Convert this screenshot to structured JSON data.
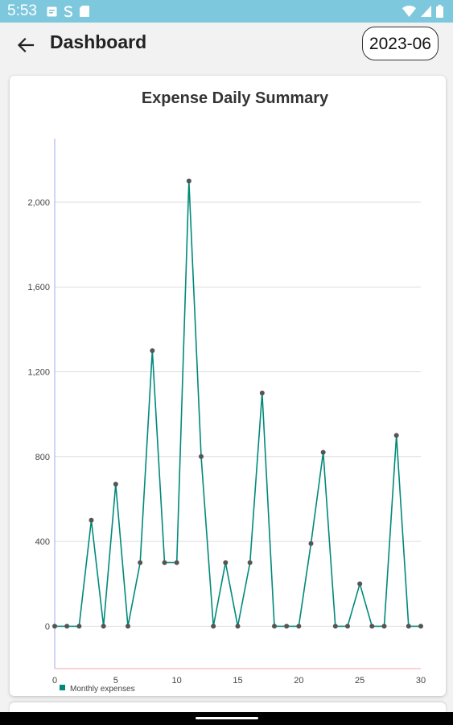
{
  "status_bar": {
    "time": "5:53",
    "left_icons": [
      "message-icon",
      "s-app-icon",
      "sd-card-icon"
    ],
    "right_icons": [
      "wifi-icon",
      "signal-icon",
      "battery-icon"
    ]
  },
  "app_bar": {
    "back_icon": "arrow-left-icon",
    "title": "Dashboard",
    "month_selector": "2023-06"
  },
  "colors": {
    "status_bar": "#7ec8de",
    "series_line": "#00897b",
    "point": "#555555",
    "grid": "#dddddd",
    "y_axis": "#a4a8ee",
    "x_axis": "#f0a8a8"
  },
  "chart_data": {
    "type": "line",
    "title": "Expense Daily Summary",
    "xlabel": "",
    "ylabel": "",
    "xlim": [
      0,
      30
    ],
    "ylim": [
      -200,
      2300
    ],
    "x_ticks": [
      0,
      5,
      10,
      15,
      20,
      25,
      30
    ],
    "y_ticks": [
      0,
      400,
      800,
      1200,
      1600,
      2000
    ],
    "y_tick_labels": [
      "0",
      "400",
      "800",
      "1,200",
      "1,600",
      "2,000"
    ],
    "x_tick_labels": [
      "0",
      "5",
      "10",
      "15",
      "20",
      "25",
      "30"
    ],
    "grid": "horizontal",
    "legend_position": "bottom-left",
    "series": [
      {
        "name": "Monthly expenses",
        "x": [
          0,
          1,
          2,
          3,
          4,
          5,
          6,
          7,
          8,
          9,
          10,
          11,
          12,
          13,
          14,
          15,
          16,
          17,
          18,
          19,
          20,
          21,
          22,
          23,
          24,
          25,
          26,
          27,
          28,
          29,
          30
        ],
        "y": [
          0,
          0,
          0,
          500,
          0,
          670,
          0,
          300,
          1300,
          300,
          300,
          2100,
          800,
          0,
          300,
          0,
          300,
          1100,
          0,
          0,
          0,
          390,
          820,
          0,
          0,
          200,
          0,
          0,
          900,
          0,
          0
        ]
      }
    ]
  }
}
